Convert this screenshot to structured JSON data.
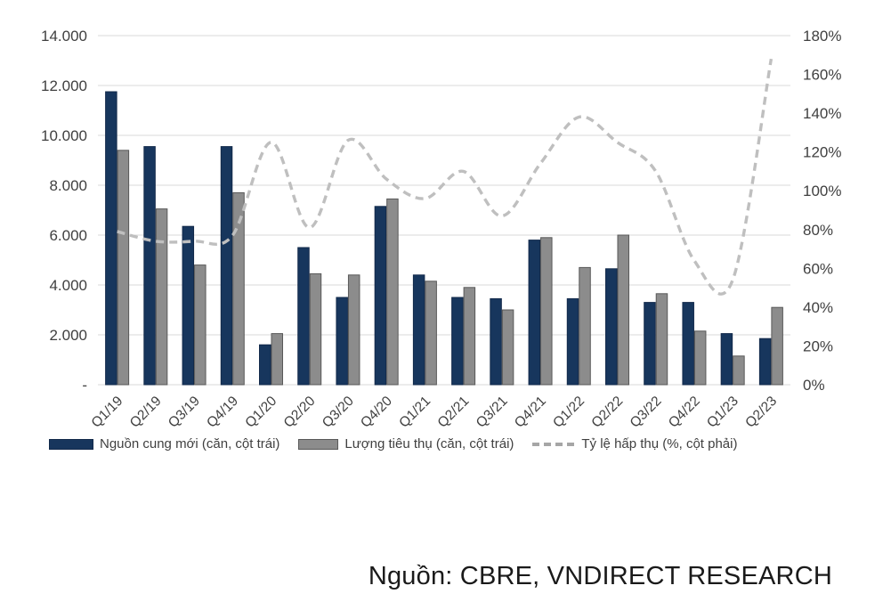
{
  "chart_data": {
    "type": "combo",
    "categories": [
      "Q1/19",
      "Q2/19",
      "Q3/19",
      "Q4/19",
      "Q1/20",
      "Q2/20",
      "Q3/20",
      "Q4/20",
      "Q1/21",
      "Q2/21",
      "Q3/21",
      "Q4/21",
      "Q1/22",
      "Q2/22",
      "Q3/22",
      "Q4/22",
      "Q1/23",
      "Q2/23"
    ],
    "series": [
      {
        "name": "Nguồn cung mới (căn, cột trái)",
        "type": "bar",
        "axis": "left",
        "values": [
          11750,
          9550,
          6350,
          9550,
          1600,
          5500,
          3500,
          7150,
          4400,
          3500,
          3450,
          5800,
          3450,
          4650,
          3300,
          3300,
          2050,
          1850
        ]
      },
      {
        "name": "Lượng tiêu thụ (căn, cột trái)",
        "type": "bar",
        "axis": "left",
        "values": [
          9400,
          7050,
          4800,
          7700,
          2050,
          4450,
          4400,
          7450,
          4150,
          3900,
          3000,
          5900,
          4700,
          6000,
          3650,
          2150,
          1150,
          3100
        ]
      },
      {
        "name": "Tỷ lệ hấp thụ (%, cột phải)",
        "type": "line",
        "style": "dashed",
        "smooth": true,
        "axis": "right",
        "values": [
          79,
          74,
          74,
          77,
          125,
          81,
          126,
          106,
          96,
          110,
          87,
          114,
          138,
          125,
          110,
          64,
          54,
          168
        ]
      }
    ],
    "left_axis": {
      "min": 0,
      "max": 14000,
      "step": 2000,
      "tick_labels": [
        "-",
        "2.000",
        "4.000",
        "6.000",
        "8.000",
        "10.000",
        "12.000",
        "14.000"
      ]
    },
    "right_axis": {
      "min": 0,
      "max": 180,
      "step": 20,
      "tick_labels": [
        "0%",
        "20%",
        "40%",
        "60%",
        "80%",
        "100%",
        "120%",
        "140%",
        "160%",
        "180%"
      ]
    },
    "grid": true,
    "legend_position": "bottom"
  },
  "legend": {
    "items": [
      {
        "label": "Nguồn cung mới (căn, cột trái)",
        "swatch": "navy-bar"
      },
      {
        "label": "Lượng tiêu thụ (căn, cột trái)",
        "swatch": "gray-bar"
      },
      {
        "label": "Tỷ lệ hấp thụ (%, cột phải)",
        "swatch": "gray-dashed-line"
      }
    ]
  },
  "source": {
    "label": "Nguồn: CBRE, VNDIRECT RESEARCH"
  },
  "colors": {
    "bar_new_supply": "#17365D",
    "bar_new_supply_border": "#12294a",
    "bar_consumption": "#8C8C8C",
    "bar_consumption_border": "#595959",
    "absorption_line": "#BFBFBF",
    "gridline": "#D9D9D9",
    "axis_text": "#404040"
  }
}
